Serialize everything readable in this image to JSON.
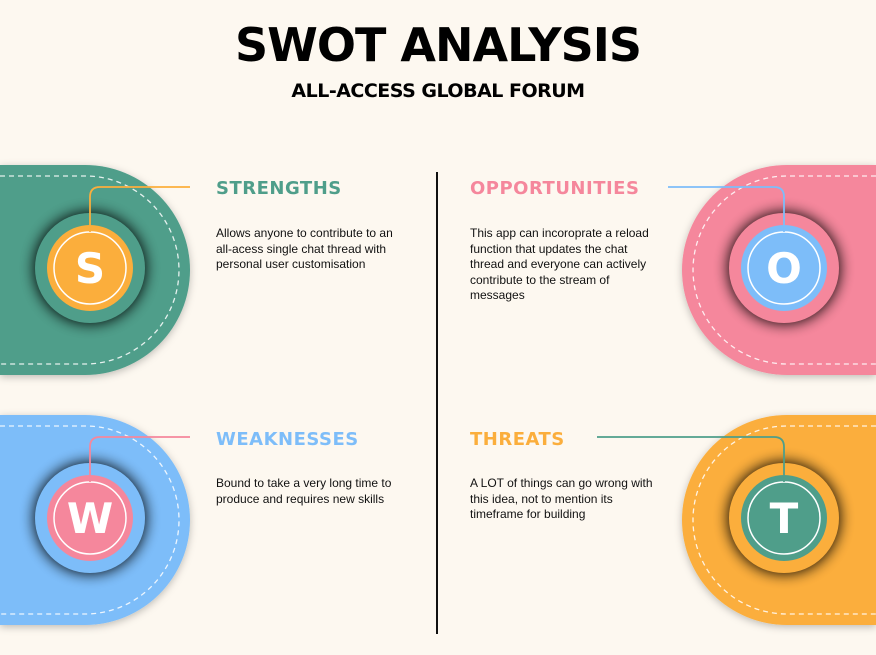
{
  "title": "SWOT ANALYSIS",
  "subtitle": "ALL-ACCESS GLOBAL FORUM",
  "colors": {
    "background": "#fdf8f0",
    "green": "#4f9e8a",
    "pink": "#f5879c",
    "blue": "#7dbdf9",
    "orange": "#fbae3c"
  },
  "quadrants": {
    "strengths": {
      "letter": "S",
      "heading": "STRENGTHS",
      "text": "Allows anyone to contribute to an all-acess single chat thread with personal user customisation"
    },
    "opportunities": {
      "letter": "O",
      "heading": "OPPORTUNITIES",
      "text": "This app can incoroprate a reload function that updates the chat thread and everyone can actively contribute to the stream of messages"
    },
    "weaknesses": {
      "letter": "W",
      "heading": "WEAKNESSES",
      "text": "Bound to take a very long time to produce and requires new skills"
    },
    "threats": {
      "letter": "T",
      "heading": "THREATS",
      "text": "A LOT of things can go wrong with this idea, not to mention its timeframe for building"
    }
  }
}
